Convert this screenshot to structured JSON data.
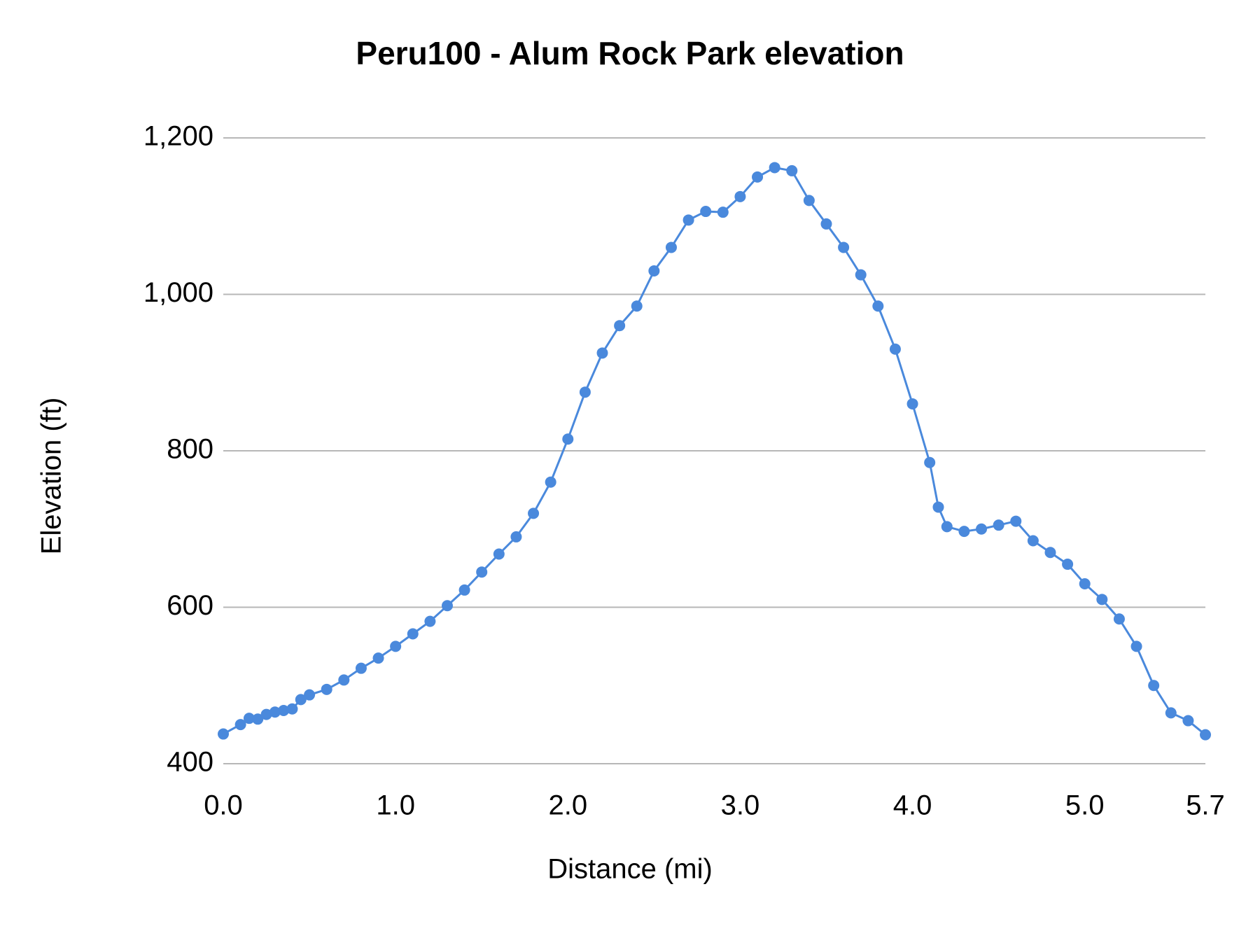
{
  "chart_data": {
    "type": "line",
    "title": "Peru100 - Alum Rock Park elevation",
    "x_label": "Distance (mi)",
    "y_label": "Elevation (ft)",
    "x": [
      0.0,
      0.1,
      0.15,
      0.2,
      0.25,
      0.3,
      0.35,
      0.4,
      0.45,
      0.5,
      0.6,
      0.7,
      0.8,
      0.9,
      1.0,
      1.1,
      1.2,
      1.3,
      1.4,
      1.5,
      1.6,
      1.7,
      1.8,
      1.9,
      2.0,
      2.1,
      2.2,
      2.3,
      2.4,
      2.5,
      2.6,
      2.7,
      2.8,
      2.9,
      3.0,
      3.1,
      3.2,
      3.3,
      3.4,
      3.5,
      3.6,
      3.7,
      3.8,
      3.9,
      4.0,
      4.1,
      4.15,
      4.2,
      4.3,
      4.4,
      4.5,
      4.6,
      4.7,
      4.8,
      4.9,
      5.0,
      5.1,
      5.2,
      5.3,
      5.4,
      5.5,
      5.6,
      5.7
    ],
    "series": [
      {
        "name": "Elevation",
        "color": "#4a89dc",
        "values": [
          438,
          450,
          458,
          457,
          463,
          466,
          468,
          470,
          482,
          488,
          495,
          507,
          522,
          535,
          550,
          566,
          582,
          602,
          622,
          645,
          668,
          690,
          720,
          760,
          815,
          875,
          925,
          960,
          985,
          1030,
          1060,
          1095,
          1106,
          1105,
          1125,
          1150,
          1162,
          1158,
          1120,
          1090,
          1060,
          1025,
          985,
          930,
          860,
          785,
          728,
          703,
          697,
          700,
          705,
          710,
          685,
          670,
          655,
          630,
          610,
          585,
          550,
          500,
          465,
          455,
          437
        ]
      }
    ],
    "xlim": [
      0,
      5.7
    ],
    "ylim": [
      400,
      1200
    ],
    "xticks": [
      {
        "value": 0,
        "label": "0.0"
      },
      {
        "value": 1,
        "label": "1.0"
      },
      {
        "value": 2,
        "label": "2.0"
      },
      {
        "value": 3,
        "label": "3.0"
      },
      {
        "value": 4,
        "label": "4.0"
      },
      {
        "value": 5,
        "label": "5.0"
      },
      5.7
    ],
    "yticks": [
      400,
      600,
      800,
      {
        "value": 1000,
        "label": "1,000"
      },
      {
        "value": 1200,
        "label": "1,200"
      }
    ],
    "grid": true
  }
}
